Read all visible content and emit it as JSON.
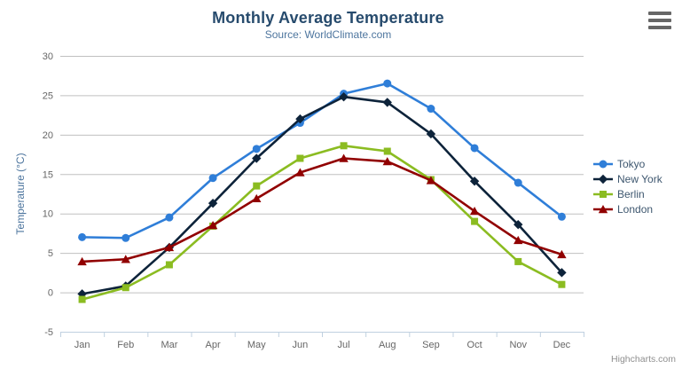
{
  "header": {
    "title": "Monthly Average Temperature",
    "subtitle": "Source: WorldClimate.com"
  },
  "credits": "Highcharts.com",
  "menu": {
    "icon": "hamburger-menu-icon"
  },
  "style_colors": {
    "title": "#274b6d",
    "subtitle": "#4d759e",
    "axis_label": "#666666",
    "axis_title": "#4d759e",
    "gridline": "#C0C0C0",
    "axis_line": "#C0D0E0",
    "credits": "#8f8f8f"
  },
  "chart_data": {
    "type": "line",
    "title": "Monthly Average Temperature",
    "subtitle": "Source: WorldClimate.com",
    "xlabel": "",
    "ylabel": "Temperature (°C)",
    "ylim": [
      -5,
      30
    ],
    "ytick_step": 5,
    "grid": true,
    "legend_position": "right",
    "categories": [
      "Jan",
      "Feb",
      "Mar",
      "Apr",
      "May",
      "Jun",
      "Jul",
      "Aug",
      "Sep",
      "Oct",
      "Nov",
      "Dec"
    ],
    "series": [
      {
        "name": "Tokyo",
        "color": "#2f7ed8",
        "marker": "circle",
        "values": [
          7.0,
          6.9,
          9.5,
          14.5,
          18.2,
          21.5,
          25.2,
          26.5,
          23.3,
          18.3,
          13.9,
          9.6
        ]
      },
      {
        "name": "New York",
        "color": "#0d233a",
        "marker": "diamond",
        "values": [
          -0.2,
          0.8,
          5.7,
          11.3,
          17.0,
          22.0,
          24.8,
          24.1,
          20.1,
          14.1,
          8.6,
          2.5
        ]
      },
      {
        "name": "Berlin",
        "color": "#8bbc21",
        "marker": "square",
        "values": [
          -0.9,
          0.6,
          3.5,
          8.4,
          13.5,
          17.0,
          18.6,
          17.9,
          14.3,
          9.0,
          3.9,
          1.0
        ]
      },
      {
        "name": "London",
        "color": "#910000",
        "marker": "triangle",
        "values": [
          3.9,
          4.2,
          5.7,
          8.5,
          11.9,
          15.2,
          17.0,
          16.6,
          14.2,
          10.3,
          6.6,
          4.8
        ]
      }
    ]
  }
}
